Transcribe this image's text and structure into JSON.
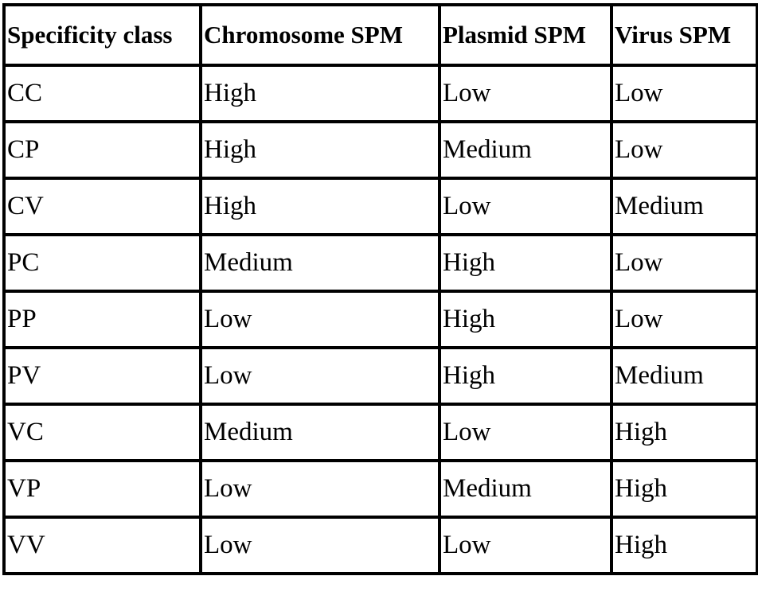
{
  "table": {
    "header": [
      "Specificity class",
      "Chromosome SPM",
      "Plasmid SPM",
      "Virus SPM"
    ],
    "rows": [
      [
        "CC",
        "High",
        "Low",
        "Low"
      ],
      [
        "CP",
        "High",
        "Medium",
        "Low"
      ],
      [
        "CV",
        "High",
        "Low",
        "Medium"
      ],
      [
        "PC",
        "Medium",
        "High",
        "Low"
      ],
      [
        "PP",
        "Low",
        "High",
        "Low"
      ],
      [
        "PV",
        "Low",
        "High",
        "Medium"
      ],
      [
        "VC",
        "Medium",
        "Low",
        "High"
      ],
      [
        "VP",
        "Low",
        "Medium",
        "High"
      ],
      [
        "VV",
        "Low",
        "Low",
        "High"
      ]
    ]
  }
}
